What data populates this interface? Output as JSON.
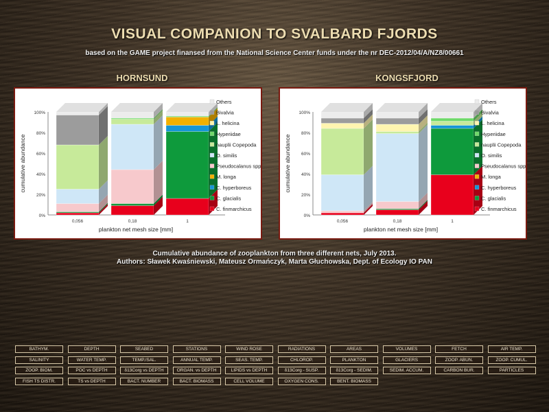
{
  "page": {
    "title": "VISUAL COMPANION TO SVALBARD FJORDS",
    "subtitle": "based on the GAME project finansed from the National Science Center funds under the nr DEC-2012/04/A/NZ8/00661",
    "caption_line1": "Cumulative abundance of zooplankton from three different nets, July 2013.",
    "caption_line2": "Authors: Sławek Kwaśniewski, Mateusz Ormańczyk, Marta Głuchowska, Dept. of Ecology IO PAN"
  },
  "chart_data": [
    {
      "type": "bar",
      "stacked": true,
      "title": "HORNSUND",
      "categories": [
        "0,056",
        "0,18",
        "1"
      ],
      "xlabel": "plankton net mesh size [mm]",
      "ylabel": "cumulative abundance",
      "ylim": [
        0,
        100
      ],
      "yticks": [
        "0%",
        "20%",
        "40%",
        "60%",
        "80%",
        "100%"
      ],
      "grid": false,
      "legend_position": "right",
      "series": [
        {
          "name": "C. finmarchicus",
          "color": "#e8001c",
          "values": [
            2,
            9,
            16
          ]
        },
        {
          "name": "C. glacialis",
          "color": "#0e9a3c",
          "values": [
            1,
            2,
            65
          ]
        },
        {
          "name": "C. hyperboreus",
          "color": "#1596d6",
          "values": [
            0,
            0,
            6
          ]
        },
        {
          "name": "M. longa",
          "color": "#f2b000",
          "values": [
            0,
            0,
            8
          ]
        },
        {
          "name": "Pseudocalanus spp.",
          "color": "#f7c9cc",
          "values": [
            8,
            33,
            0
          ]
        },
        {
          "name": "O. similis",
          "color": "#cfe7f7",
          "values": [
            14,
            44,
            0
          ]
        },
        {
          "name": "nauplii Copepoda",
          "color": "#c7ea9a",
          "values": [
            43,
            5,
            0
          ]
        },
        {
          "name": "Hyperiidae",
          "color": "#6fd96a",
          "values": [
            0,
            1,
            1
          ]
        },
        {
          "name": "L. helicina",
          "color": "#fff5b0",
          "values": [
            0,
            0,
            0
          ]
        },
        {
          "name": "Bivalvia",
          "color": "#9c9c9c",
          "values": [
            29,
            0,
            0
          ]
        },
        {
          "name": "Others",
          "color": "#ececec",
          "values": [
            3,
            6,
            4
          ]
        }
      ]
    },
    {
      "type": "bar",
      "stacked": true,
      "title": "KONGSFJORD",
      "categories": [
        "0,056",
        "0,18",
        "1"
      ],
      "xlabel": "plankton net mesh size [mm]",
      "ylabel": "cumulative abundance",
      "ylim": [
        0,
        100
      ],
      "yticks": [
        "0%",
        "20%",
        "40%",
        "60%",
        "80%",
        "100%"
      ],
      "grid": false,
      "legend_position": "right",
      "series": [
        {
          "name": "C. finmarchicus",
          "color": "#e8001c",
          "values": [
            2,
            5,
            39
          ]
        },
        {
          "name": "C. glacialis",
          "color": "#0e9a3c",
          "values": [
            0,
            1,
            45
          ]
        },
        {
          "name": "C. hyperboreus",
          "color": "#1596d6",
          "values": [
            0,
            0,
            3
          ]
        },
        {
          "name": "M. longa",
          "color": "#f2b000",
          "values": [
            0,
            0,
            0
          ]
        },
        {
          "name": "Pseudocalanus spp.",
          "color": "#f7c9cc",
          "values": [
            2,
            7,
            0
          ]
        },
        {
          "name": "O. similis",
          "color": "#cfe7f7",
          "values": [
            35,
            66,
            0
          ]
        },
        {
          "name": "nauplii Copepoda",
          "color": "#c7ea9a",
          "values": [
            45,
            2,
            4
          ]
        },
        {
          "name": "Hyperiidae",
          "color": "#6fd96a",
          "values": [
            0,
            0,
            3
          ]
        },
        {
          "name": "L. helicina",
          "color": "#fff5b0",
          "values": [
            5,
            7,
            0
          ]
        },
        {
          "name": "Bivalvia",
          "color": "#9c9c9c",
          "values": [
            5,
            6,
            0
          ]
        },
        {
          "name": "Others",
          "color": "#ececec",
          "values": [
            6,
            6,
            6
          ]
        }
      ]
    }
  ],
  "nav": {
    "rows": [
      [
        "BATHYM.",
        "DEPTH",
        "SEABED",
        "STATIONS",
        "WIND ROSE",
        "RADIATIONS",
        "AREAS",
        "VOLUMES",
        "FETCH",
        "AIR TEMP."
      ],
      [
        "SALINITY",
        "WATER TEMP.",
        "TEMP./SAL.",
        "ANNUAL TEMP.",
        "SEAS. TEMP.",
        "CHLOROP.",
        "PLANKTON",
        "GLACIERS",
        "ZOOP. ABUN.",
        "ZOOP. CUMUL."
      ],
      [
        "ZOOP. BIOM.",
        "POC vs DEPTH",
        "δ13Corg vs DEPTH",
        "ORGAN. vs DEPTH",
        "LIPIDS vs DEPTH",
        "δ13Corg - SUSP.",
        "δ13Corg - SEDIM.",
        "SEDIM. ACCUM.",
        "CARBON BUR.",
        "PARTICLES"
      ],
      [
        "FISH TS DISTR.",
        "TS vs DEPTH",
        "BACT. NUMBER",
        "BACT. BIOMASS",
        "CELL VOLUME",
        "OXYGEN CONS.",
        "BENT. BIOMASS"
      ]
    ]
  }
}
